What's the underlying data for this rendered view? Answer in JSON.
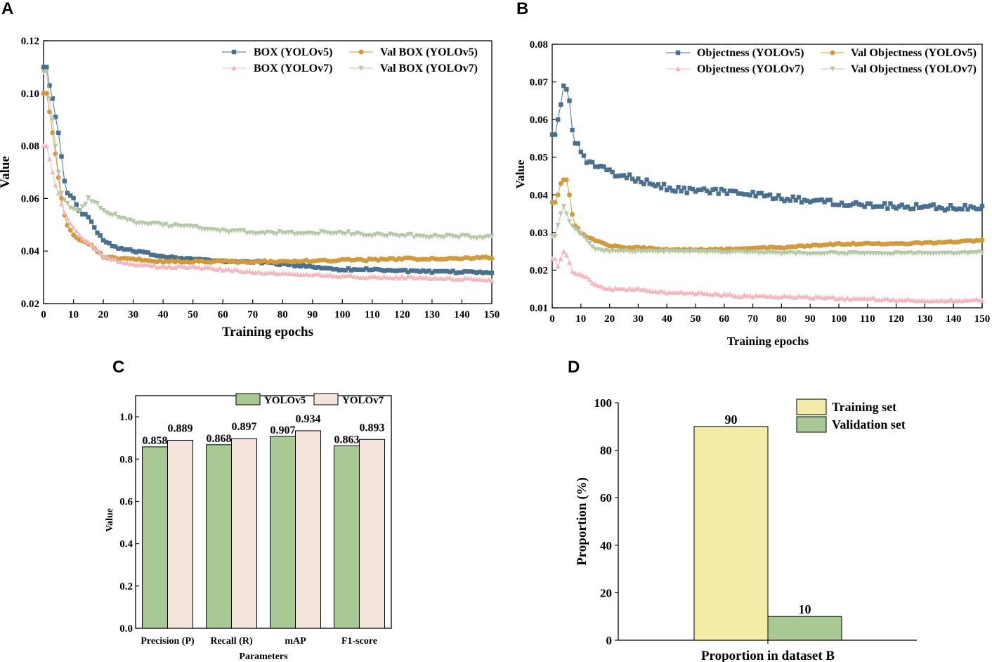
{
  "chart_data": [
    {
      "panel": "A",
      "type": "line",
      "xlabel": "Training epochs",
      "ylabel": "Value",
      "xlim": [
        0,
        150
      ],
      "ylim": [
        0.02,
        0.12
      ],
      "xticks": [
        0,
        10,
        20,
        30,
        40,
        50,
        60,
        70,
        80,
        90,
        100,
        110,
        120,
        130,
        140,
        150
      ],
      "yticks": [
        0.02,
        0.04,
        0.06,
        0.08,
        0.1,
        0.12
      ],
      "ytick_labels": [
        "0.02",
        "0.04",
        "0.06",
        "0.08",
        "0.10",
        "0.12"
      ],
      "legend_position": "top-right",
      "series": [
        {
          "name": "BOX (YOLOv5)",
          "color": "#4a6f8f",
          "marker": "square",
          "anchors": [
            [
              0,
              0.11
            ],
            [
              1,
              0.11
            ],
            [
              2,
              0.103
            ],
            [
              3,
              0.098
            ],
            [
              4,
              0.091
            ],
            [
              5,
              0.085
            ],
            [
              6,
              0.076
            ],
            [
              7,
              0.067
            ],
            [
              8,
              0.062
            ],
            [
              10,
              0.06
            ],
            [
              12,
              0.055
            ],
            [
              15,
              0.053
            ],
            [
              18,
              0.047
            ],
            [
              20,
              0.044
            ],
            [
              25,
              0.041
            ],
            [
              30,
              0.04
            ],
            [
              40,
              0.038
            ],
            [
              50,
              0.037
            ],
            [
              60,
              0.036
            ],
            [
              70,
              0.036
            ],
            [
              80,
              0.035
            ],
            [
              90,
              0.034
            ],
            [
              100,
              0.033
            ],
            [
              110,
              0.033
            ],
            [
              120,
              0.0325
            ],
            [
              130,
              0.032
            ],
            [
              140,
              0.032
            ],
            [
              150,
              0.032
            ]
          ],
          "noise": 0.0004
        },
        {
          "name": "Val BOX (YOLOv5)",
          "color": "#d19a3c",
          "marker": "circle",
          "anchors": [
            [
              0,
              0.1
            ],
            [
              1,
              0.1
            ],
            [
              2,
              0.093
            ],
            [
              3,
              0.085
            ],
            [
              4,
              0.077
            ],
            [
              5,
              0.068
            ],
            [
              6,
              0.06
            ],
            [
              7,
              0.054
            ],
            [
              8,
              0.05
            ],
            [
              10,
              0.046
            ],
            [
              12,
              0.044
            ],
            [
              15,
              0.043
            ],
            [
              18,
              0.04
            ],
            [
              20,
              0.038
            ],
            [
              25,
              0.037
            ],
            [
              30,
              0.037
            ],
            [
              40,
              0.036
            ],
            [
              50,
              0.036
            ],
            [
              60,
              0.036
            ],
            [
              70,
              0.036
            ],
            [
              80,
              0.036
            ],
            [
              90,
              0.0362
            ],
            [
              100,
              0.0365
            ],
            [
              110,
              0.0367
            ],
            [
              120,
              0.037
            ],
            [
              130,
              0.0372
            ],
            [
              140,
              0.0372
            ],
            [
              150,
              0.0375
            ]
          ],
          "noise": 0.0004
        },
        {
          "name": "BOX (YOLOv7)",
          "color": "#f2b8bd",
          "marker": "triangle-up",
          "anchors": [
            [
              0,
              0.08
            ],
            [
              1,
              0.08
            ],
            [
              2,
              0.075
            ],
            [
              3,
              0.07
            ],
            [
              4,
              0.065
            ],
            [
              5,
              0.062
            ],
            [
              6,
              0.058
            ],
            [
              7,
              0.055
            ],
            [
              8,
              0.052
            ],
            [
              10,
              0.049
            ],
            [
              12,
              0.046
            ],
            [
              15,
              0.043
            ],
            [
              18,
              0.04
            ],
            [
              20,
              0.038
            ],
            [
              25,
              0.036
            ],
            [
              30,
              0.035
            ],
            [
              40,
              0.034
            ],
            [
              50,
              0.034
            ],
            [
              60,
              0.033
            ],
            [
              70,
              0.032
            ],
            [
              80,
              0.0315
            ],
            [
              90,
              0.031
            ],
            [
              100,
              0.0305
            ],
            [
              110,
              0.03
            ],
            [
              120,
              0.03
            ],
            [
              130,
              0.0298
            ],
            [
              140,
              0.0295
            ],
            [
              150,
              0.029
            ]
          ],
          "noise": 0.0004
        },
        {
          "name": "Val BOX (YOLOv7)",
          "color": "#b5c9a8",
          "marker": "triangle-down",
          "anchors": [
            [
              0,
              0.108
            ],
            [
              1,
              0.108
            ],
            [
              2,
              0.098
            ],
            [
              3,
              0.09
            ],
            [
              4,
              0.08
            ],
            [
              5,
              0.07
            ],
            [
              6,
              0.062
            ],
            [
              8,
              0.058
            ],
            [
              10,
              0.056
            ],
            [
              12,
              0.055
            ],
            [
              14,
              0.058
            ],
            [
              15,
              0.06
            ],
            [
              18,
              0.058
            ],
            [
              20,
              0.055
            ],
            [
              25,
              0.053
            ],
            [
              30,
              0.051
            ],
            [
              40,
              0.05
            ],
            [
              50,
              0.049
            ],
            [
              60,
              0.048
            ],
            [
              70,
              0.047
            ],
            [
              80,
              0.047
            ],
            [
              90,
              0.047
            ],
            [
              100,
              0.047
            ],
            [
              110,
              0.046
            ],
            [
              120,
              0.046
            ],
            [
              130,
              0.0455
            ],
            [
              140,
              0.0455
            ],
            [
              150,
              0.0452
            ]
          ],
          "noise": 0.0006
        }
      ]
    },
    {
      "panel": "B",
      "type": "line",
      "xlabel": "Training epochs",
      "ylabel": "Value",
      "xlim": [
        0,
        150
      ],
      "ylim": [
        0.01,
        0.08
      ],
      "xticks": [
        0,
        10,
        20,
        30,
        40,
        50,
        60,
        70,
        80,
        90,
        100,
        110,
        120,
        130,
        140,
        150
      ],
      "yticks": [
        0.01,
        0.02,
        0.03,
        0.04,
        0.05,
        0.06,
        0.07,
        0.08
      ],
      "ytick_labels": [
        "0.01",
        "0.02",
        "0.03",
        "0.04",
        "0.05",
        "0.06",
        "0.07",
        "0.08"
      ],
      "legend_position": "top-right",
      "series": [
        {
          "name": "Objectness (YOLOv5)",
          "color": "#4a6f8f",
          "marker": "square",
          "anchors": [
            [
              0,
              0.056
            ],
            [
              1,
              0.056
            ],
            [
              2,
              0.06
            ],
            [
              3,
              0.064
            ],
            [
              4,
              0.069
            ],
            [
              5,
              0.068
            ],
            [
              6,
              0.065
            ],
            [
              7,
              0.058
            ],
            [
              8,
              0.054
            ],
            [
              10,
              0.052
            ],
            [
              12,
              0.049
            ],
            [
              15,
              0.048
            ],
            [
              18,
              0.047
            ],
            [
              20,
              0.046
            ],
            [
              25,
              0.045
            ],
            [
              30,
              0.044
            ],
            [
              40,
              0.042
            ],
            [
              50,
              0.041
            ],
            [
              60,
              0.041
            ],
            [
              70,
              0.04
            ],
            [
              80,
              0.039
            ],
            [
              90,
              0.0385
            ],
            [
              100,
              0.038
            ],
            [
              110,
              0.0375
            ],
            [
              120,
              0.037
            ],
            [
              130,
              0.037
            ],
            [
              140,
              0.0365
            ],
            [
              150,
              0.037
            ]
          ],
          "noise": 0.0008
        },
        {
          "name": "Val Objectness (YOLOv5)",
          "color": "#d19a3c",
          "marker": "circle",
          "anchors": [
            [
              0,
              0.038
            ],
            [
              1,
              0.038
            ],
            [
              2,
              0.04
            ],
            [
              3,
              0.043
            ],
            [
              4,
              0.044
            ],
            [
              5,
              0.044
            ],
            [
              6,
              0.04
            ],
            [
              7,
              0.035
            ],
            [
              8,
              0.032
            ],
            [
              10,
              0.03
            ],
            [
              12,
              0.029
            ],
            [
              15,
              0.028
            ],
            [
              20,
              0.0265
            ],
            [
              25,
              0.026
            ],
            [
              30,
              0.026
            ],
            [
              40,
              0.0255
            ],
            [
              50,
              0.0255
            ],
            [
              60,
              0.0255
            ],
            [
              70,
              0.026
            ],
            [
              80,
              0.026
            ],
            [
              90,
              0.0265
            ],
            [
              100,
              0.027
            ],
            [
              110,
              0.027
            ],
            [
              120,
              0.027
            ],
            [
              130,
              0.0272
            ],
            [
              140,
              0.0275
            ],
            [
              150,
              0.028
            ]
          ],
          "noise": 0.0002
        },
        {
          "name": "Objectness (YOLOv7)",
          "color": "#f2b8bd",
          "marker": "triangle-up",
          "anchors": [
            [
              0,
              0.023
            ],
            [
              1,
              0.023
            ],
            [
              2,
              0.021
            ],
            [
              3,
              0.023
            ],
            [
              4,
              0.025
            ],
            [
              5,
              0.024
            ],
            [
              6,
              0.022
            ],
            [
              7,
              0.02
            ],
            [
              8,
              0.019
            ],
            [
              10,
              0.019
            ],
            [
              12,
              0.018
            ],
            [
              15,
              0.016
            ],
            [
              20,
              0.015
            ],
            [
              30,
              0.015
            ],
            [
              40,
              0.014
            ],
            [
              50,
              0.014
            ],
            [
              60,
              0.0135
            ],
            [
              70,
              0.013
            ],
            [
              80,
              0.013
            ],
            [
              90,
              0.0128
            ],
            [
              100,
              0.0125
            ],
            [
              110,
              0.0125
            ],
            [
              120,
              0.012
            ],
            [
              130,
              0.012
            ],
            [
              140,
              0.012
            ],
            [
              150,
              0.012
            ]
          ],
          "noise": 0.0003
        },
        {
          "name": "Val Objectness (YOLOv7)",
          "color": "#b5c9a8",
          "marker": "triangle-down",
          "anchors": [
            [
              0,
              0.029
            ],
            [
              1,
              0.029
            ],
            [
              2,
              0.032
            ],
            [
              3,
              0.035
            ],
            [
              4,
              0.037
            ],
            [
              5,
              0.035
            ],
            [
              6,
              0.033
            ],
            [
              8,
              0.031
            ],
            [
              10,
              0.03
            ],
            [
              12,
              0.028
            ],
            [
              15,
              0.0255
            ],
            [
              20,
              0.025
            ],
            [
              30,
              0.025
            ],
            [
              40,
              0.025
            ],
            [
              50,
              0.025
            ],
            [
              60,
              0.0248
            ],
            [
              70,
              0.0248
            ],
            [
              80,
              0.0245
            ],
            [
              90,
              0.0245
            ],
            [
              100,
              0.0245
            ],
            [
              110,
              0.0245
            ],
            [
              120,
              0.0245
            ],
            [
              130,
              0.0245
            ],
            [
              140,
              0.0245
            ],
            [
              150,
              0.0248
            ]
          ],
          "noise": 0.0002
        }
      ]
    },
    {
      "panel": "C",
      "type": "bar",
      "xlabel": "Parameters",
      "ylabel": "Value",
      "ylim": [
        0,
        1.1
      ],
      "yticks": [
        0,
        0.2,
        0.4,
        0.6,
        0.8,
        1.0
      ],
      "ytick_labels": [
        "0.0",
        "0.2",
        "0.4",
        "0.6",
        "0.8",
        "1.0"
      ],
      "categories": [
        "Precision (P)",
        "Recall (R)",
        "mAP",
        "F1-score"
      ],
      "legend_position": "top-right",
      "series": [
        {
          "name": "YOLOv5",
          "color": "#a9c994",
          "values": [
            0.858,
            0.868,
            0.907,
            0.863
          ],
          "labels": [
            "0.858",
            "0.868",
            "0.907",
            "0.863"
          ]
        },
        {
          "name": "YOLOv7",
          "color": "#f5e4dc",
          "values": [
            0.889,
            0.897,
            0.934,
            0.893
          ],
          "labels": [
            "0.889",
            "0.897",
            "0.934",
            "0.893"
          ]
        }
      ]
    },
    {
      "panel": "D",
      "type": "bar",
      "xlabel": "Proportion in dataset B",
      "ylabel": "Proportion (%)",
      "ylim": [
        0,
        100
      ],
      "yticks": [
        0,
        20,
        40,
        60,
        80,
        100
      ],
      "ytick_labels": [
        "0",
        "20",
        "40",
        "60",
        "80",
        "100"
      ],
      "categories": [
        "Proportion in dataset B"
      ],
      "legend_position": "top-right",
      "series": [
        {
          "name": "Training set",
          "color": "#f3eba8",
          "values": [
            90
          ],
          "labels": [
            "90"
          ]
        },
        {
          "name": "Validation set",
          "color": "#a9c994",
          "values": [
            10
          ],
          "labels": [
            "10"
          ]
        }
      ]
    }
  ]
}
